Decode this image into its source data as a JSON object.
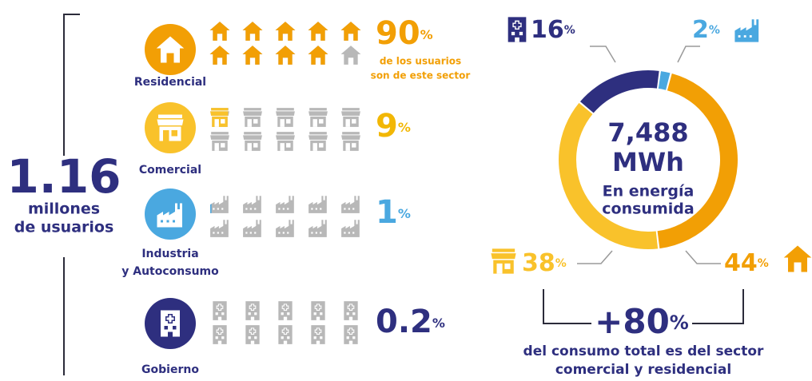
{
  "unit": "%",
  "users": {
    "total": 1.16,
    "label": [
      "millones",
      "de usuarios"
    ]
  },
  "sectors": [
    {
      "name": [
        "Residencial"
      ],
      "share": 90,
      "note": [
        "de los usuarios",
        "son de este sector"
      ],
      "consumption": 44,
      "color": "#F29F05"
    },
    {
      "name": [
        "Comercial"
      ],
      "share": 9,
      "consumption": 38,
      "color": "#F9C22B"
    },
    {
      "name": [
        "Industria",
        "y Autoconsumo"
      ],
      "share": 1,
      "consumption": 2,
      "color": "#4AA8E0"
    },
    {
      "name": [
        "Gobierno"
      ],
      "share": 0.2,
      "consumption": 16,
      "color": "#2E2F7F"
    }
  ],
  "energy": {
    "value": {
      "value": 7488,
      "label": "7,488"
    },
    "unit": "MWh",
    "caption": [
      "En energía",
      "consumida"
    ]
  },
  "combined": {
    "prefix": "+",
    "value": 80,
    "caption": [
      "del consumo total es del sector",
      "comercial y residencial"
    ]
  }
}
